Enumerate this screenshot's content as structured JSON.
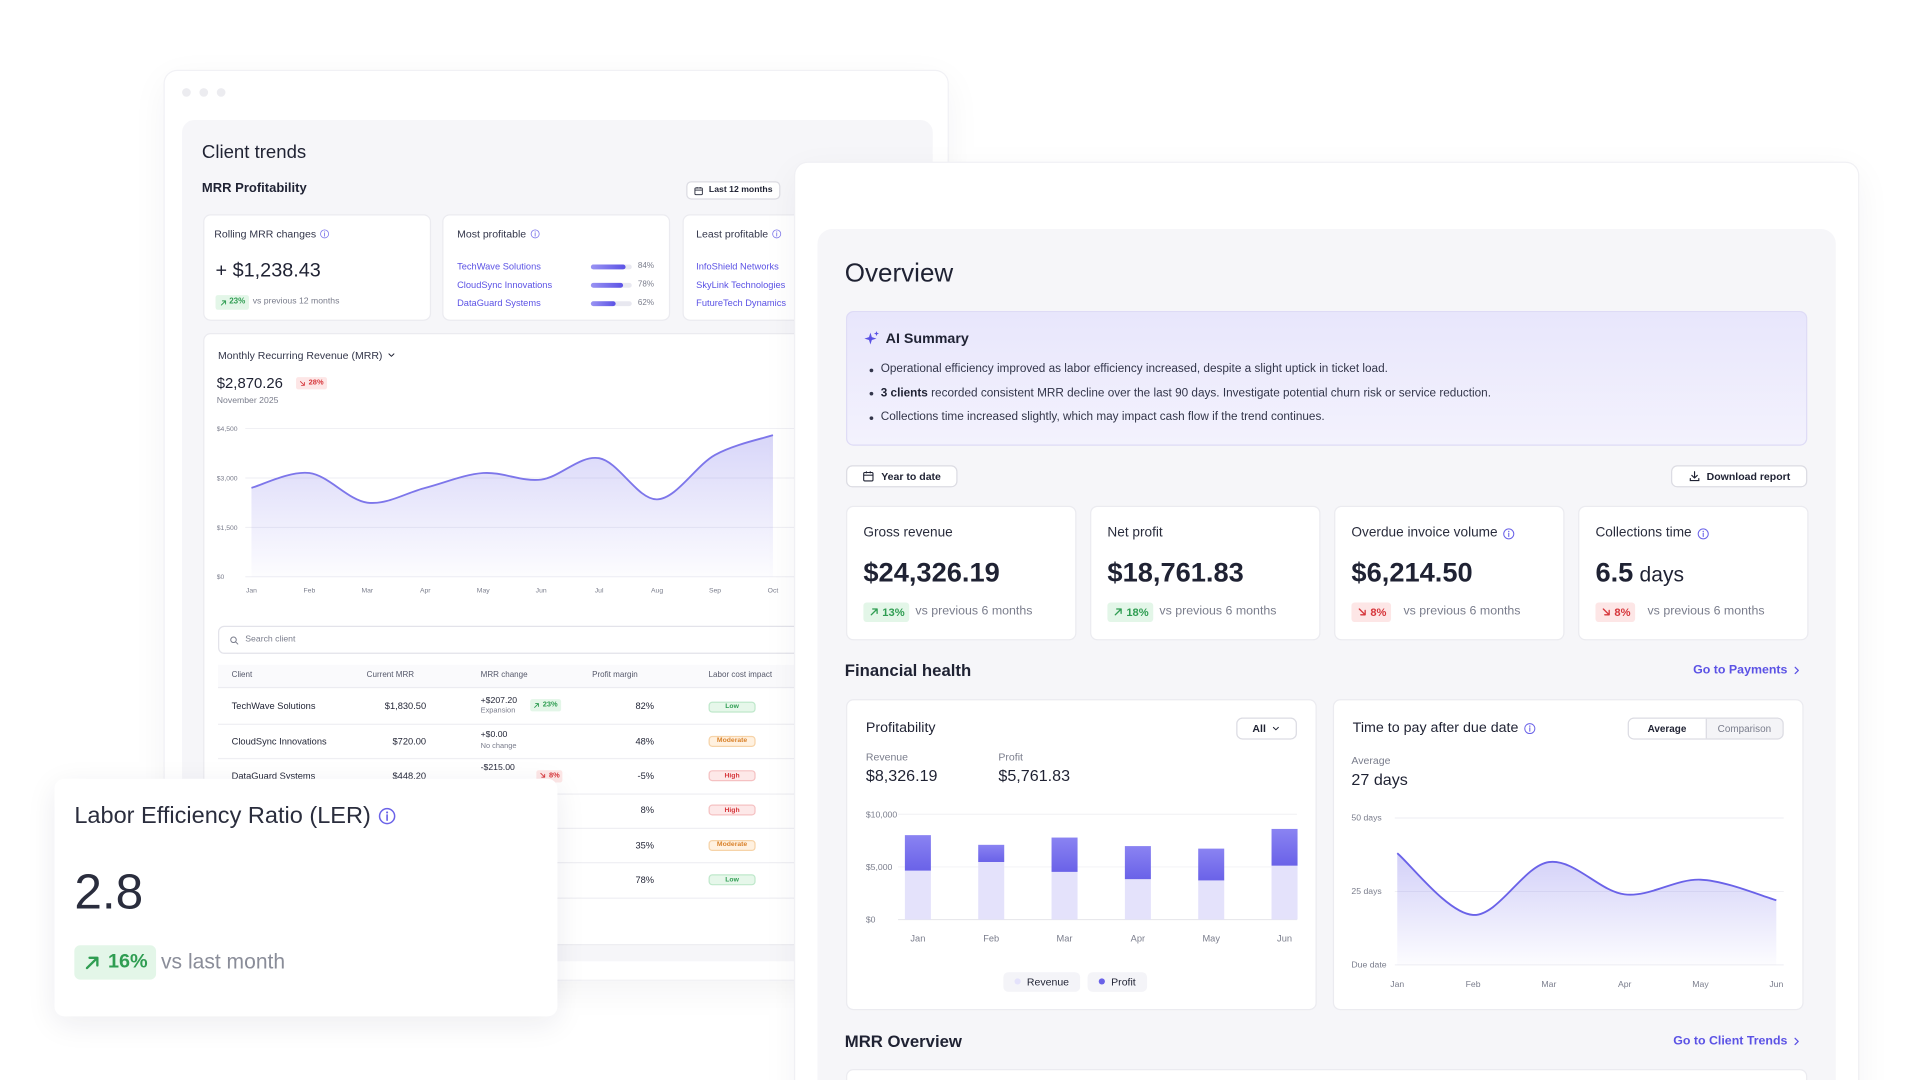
{
  "client_trends": {
    "title": "Client trends",
    "subtitle": "MRR Profitability",
    "period": "Last 12 months",
    "rolling": {
      "label": "Rolling MRR changes",
      "value": "+ $1,238.43",
      "change": "23%",
      "trend": "up",
      "compare": "vs previous 12 months"
    },
    "most_profitable": {
      "label": "Most profitable",
      "items": [
        {
          "name": "TechWave Solutions",
          "value": 84,
          "label": "84%"
        },
        {
          "name": "CloudSync Innovations",
          "value": 78,
          "label": "78%"
        },
        {
          "name": "DataGuard Systems",
          "value": 62,
          "label": "62%"
        }
      ]
    },
    "least_profitable": {
      "label": "Least profitable",
      "items": [
        "InfoShield Networks",
        "SkyLink Technologies",
        "FutureTech Dynamics"
      ]
    },
    "mrr_chart": {
      "type": "line",
      "title": "Monthly Recurring Revenue (MRR)",
      "value": "$2,870.26",
      "change": "28%",
      "trend": "down",
      "date": "November 2025",
      "categories": [
        "Jan",
        "Feb",
        "Mar",
        "Apr",
        "May",
        "Jun",
        "Jul",
        "Aug",
        "Sep",
        "Oct"
      ],
      "values": [
        2700,
        3150,
        2250,
        2700,
        3150,
        2950,
        3600,
        2350,
        3700,
        4300
      ],
      "color": "#7d76ea",
      "ylim": [
        0,
        4500
      ],
      "yticks": [
        {
          "value": 0,
          "label": "$0"
        },
        {
          "value": 1500,
          "label": "$1,500"
        },
        {
          "value": 3000,
          "label": "$3,000"
        },
        {
          "value": 4500,
          "label": "$4,500"
        }
      ]
    },
    "search_placeholder": "Search client",
    "table": {
      "columns": [
        "Client",
        "Current MRR",
        "MRR change",
        "Profit margin",
        "Labor cost impact"
      ],
      "rows": [
        {
          "client": "TechWave Solutions",
          "mrr": "$1,830.50",
          "change": "+$207.20",
          "change_note": "Expansion",
          "change_badge": "23%",
          "trend": "up",
          "margin": "82%",
          "impact": "Low"
        },
        {
          "client": "CloudSync Innovations",
          "mrr": "$720.00",
          "change": "+$0.00",
          "change_note": "No change",
          "margin": "48%",
          "impact": "Moderate"
        },
        {
          "client": "DataGuard Systems",
          "mrr": "$448.20",
          "change": "-$215.00",
          "change_badge": "8%",
          "trend": "down",
          "margin": "-5%",
          "impact": "High"
        },
        {
          "margin": "8%",
          "impact": "High"
        },
        {
          "margin": "35%",
          "impact": "Moderate"
        },
        {
          "margin": "78%",
          "impact": "Low"
        }
      ]
    }
  },
  "ler": {
    "title": "Labor Efficiency Ratio (LER)",
    "value": "2.8",
    "change": "16%",
    "trend": "up",
    "compare": "vs last month"
  },
  "overview": {
    "title": "Overview",
    "ai_summary": {
      "title": "AI Summary",
      "bullets": [
        {
          "text": "Operational efficiency improved as labor efficiency increased, despite a slight uptick in ticket load."
        },
        {
          "bold": "3 clients",
          "text": " recorded consistent MRR decline over the last 90 days. Investigate potential churn risk or service reduction."
        },
        {
          "text": "Collections time increased slightly, which may impact cash flow if the trend continues."
        }
      ]
    },
    "period": "Year to date",
    "download": "Download report",
    "kpis": [
      {
        "label": "Gross revenue",
        "value": "$24,326.19",
        "change": "13%",
        "trend": "up",
        "compare": "vs previous 6 months"
      },
      {
        "label": "Net profit",
        "value": "$18,761.83",
        "change": "18%",
        "trend": "up",
        "compare": "vs previous 6 months"
      },
      {
        "label": "Overdue invoice volume",
        "info": true,
        "value": "$6,214.50",
        "change": "8%",
        "trend": "down",
        "compare": "vs previous 6 months"
      },
      {
        "label": "Collections time",
        "info": true,
        "value": "6.5",
        "unit": "days",
        "change": "8%",
        "trend": "down",
        "compare": "vs previous 6 months"
      }
    ],
    "financial_health": {
      "title": "Financial health",
      "link": "Go to Payments"
    },
    "profitability": {
      "type": "bar",
      "stacked": true,
      "title": "Profitability",
      "filter": "All",
      "summary": [
        {
          "label": "Revenue",
          "value": "$8,326.19"
        },
        {
          "label": "Profit",
          "value": "$5,761.83"
        }
      ],
      "categories": [
        "Jan",
        "Feb",
        "Mar",
        "Apr",
        "May",
        "Jun"
      ],
      "series": [
        {
          "name": "Revenue",
          "color": "#e4e2fb",
          "values": [
            4650,
            5470,
            4530,
            3840,
            3720,
            5120
          ]
        },
        {
          "name": "Profit",
          "color": "#6a62e8",
          "values": [
            3370,
            1630,
            3260,
            3140,
            3020,
            3490
          ]
        }
      ],
      "ylim": [
        0,
        10000
      ],
      "yticks": [
        {
          "value": 0,
          "label": "$0"
        },
        {
          "value": 5000,
          "label": "$5,000"
        },
        {
          "value": 10000,
          "label": "$10,000"
        }
      ]
    },
    "time_to_pay": {
      "type": "line",
      "title": "Time to pay after due date",
      "toggle": [
        "Average",
        "Comparison"
      ],
      "active": 0,
      "metric_label": "Average",
      "metric_value": "27 days",
      "categories": [
        "Jan",
        "Feb",
        "Mar",
        "Apr",
        "May",
        "Jun"
      ],
      "values": [
        38,
        17,
        35,
        24,
        29,
        22
      ],
      "color": "#6a62e8",
      "ylim": [
        0,
        50
      ],
      "yticks": [
        {
          "value": 0,
          "label": "Due date"
        },
        {
          "value": 25,
          "label": "25 days"
        },
        {
          "value": 50,
          "label": "50 days"
        }
      ]
    },
    "mrr_overview": {
      "title": "MRR Overview",
      "link": "Go to Client Trends"
    }
  }
}
